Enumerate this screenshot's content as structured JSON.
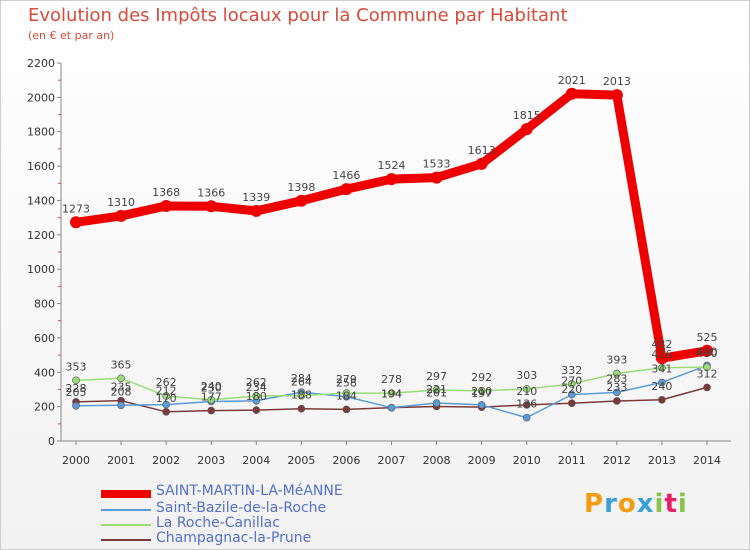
{
  "title": "Evolution des Impôts locaux pour la Commune par Habitant",
  "subtitle": "(en € et par an)",
  "brand": "Proxiti",
  "chart_data": {
    "type": "line",
    "title": "Evolution des Impôts locaux pour la Commune par Habitant",
    "ylabel": "(en € et par an)",
    "xlabel": "",
    "ylim": [
      0,
      2200
    ],
    "yticks": [
      0,
      200,
      400,
      600,
      800,
      1000,
      1200,
      1400,
      1600,
      1800,
      2000,
      2200
    ],
    "categories": [
      "2000",
      "2001",
      "2002",
      "2003",
      "2004",
      "2005",
      "2006",
      "2007",
      "2008",
      "2009",
      "2010",
      "2011",
      "2012",
      "2013",
      "2014"
    ],
    "legend_position": "bottom-left",
    "grid": false,
    "series": [
      {
        "name": "SAINT-MARTIN-LA-MéANNE",
        "color": "#ee0000",
        "values": [
          1273,
          1310,
          1368,
          1366,
          1339,
          1398,
          1466,
          1524,
          1533,
          1613,
          1815,
          2021,
          2013,
          482,
          525
        ]
      },
      {
        "name": "Saint-Bazile-de-la-Roche",
        "color": "#5b9bd5",
        "values": [
          205,
          208,
          212,
          230,
          234,
          284,
          258,
          194,
          221,
          210,
          136,
          270,
          283,
          341,
          440
        ]
      },
      {
        "name": "La Roche-Canillac",
        "color": "#99dd77",
        "values": [
          353,
          365,
          262,
          240,
          262,
          264,
          279,
          278,
          297,
          292,
          303,
          332,
          393,
          426,
          430
        ]
      },
      {
        "name": "Champagnac-la-Prune",
        "color": "#7b3b3b",
        "values": [
          228,
          235,
          170,
          177,
          180,
          188,
          184,
          194,
          201,
          197,
          210,
          220,
          233,
          240,
          312
        ]
      }
    ]
  }
}
